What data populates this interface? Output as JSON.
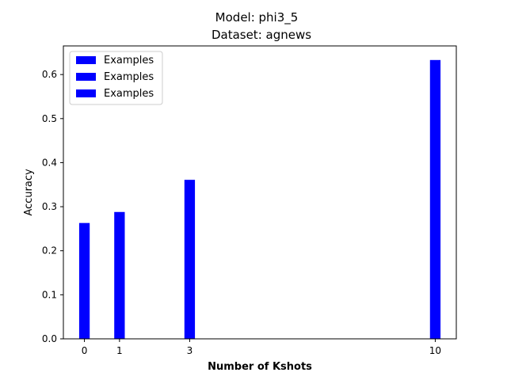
{
  "chart_data": {
    "type": "bar",
    "title_lines": [
      "Model: phi3_5",
      "Dataset: agnews"
    ],
    "xlabel": "Number of Kshots",
    "ylabel": "Accuracy",
    "x": [
      0,
      1,
      3,
      10
    ],
    "x_ticks": [
      0,
      1,
      3,
      10
    ],
    "xlim": [
      -0.6,
      10.6
    ],
    "y_ticks": [
      0.0,
      0.1,
      0.2,
      0.3,
      0.4,
      0.5,
      0.6
    ],
    "ylim": [
      0,
      0.665
    ],
    "bar_width": 0.3,
    "grid": false,
    "legend_position": "upper left",
    "legend": [
      "Examples",
      "Examples",
      "Examples"
    ],
    "series": [
      {
        "name": "Examples",
        "color": "#0000ff",
        "values": [
          0.263,
          0.288,
          0.361,
          0.633
        ]
      }
    ]
  }
}
